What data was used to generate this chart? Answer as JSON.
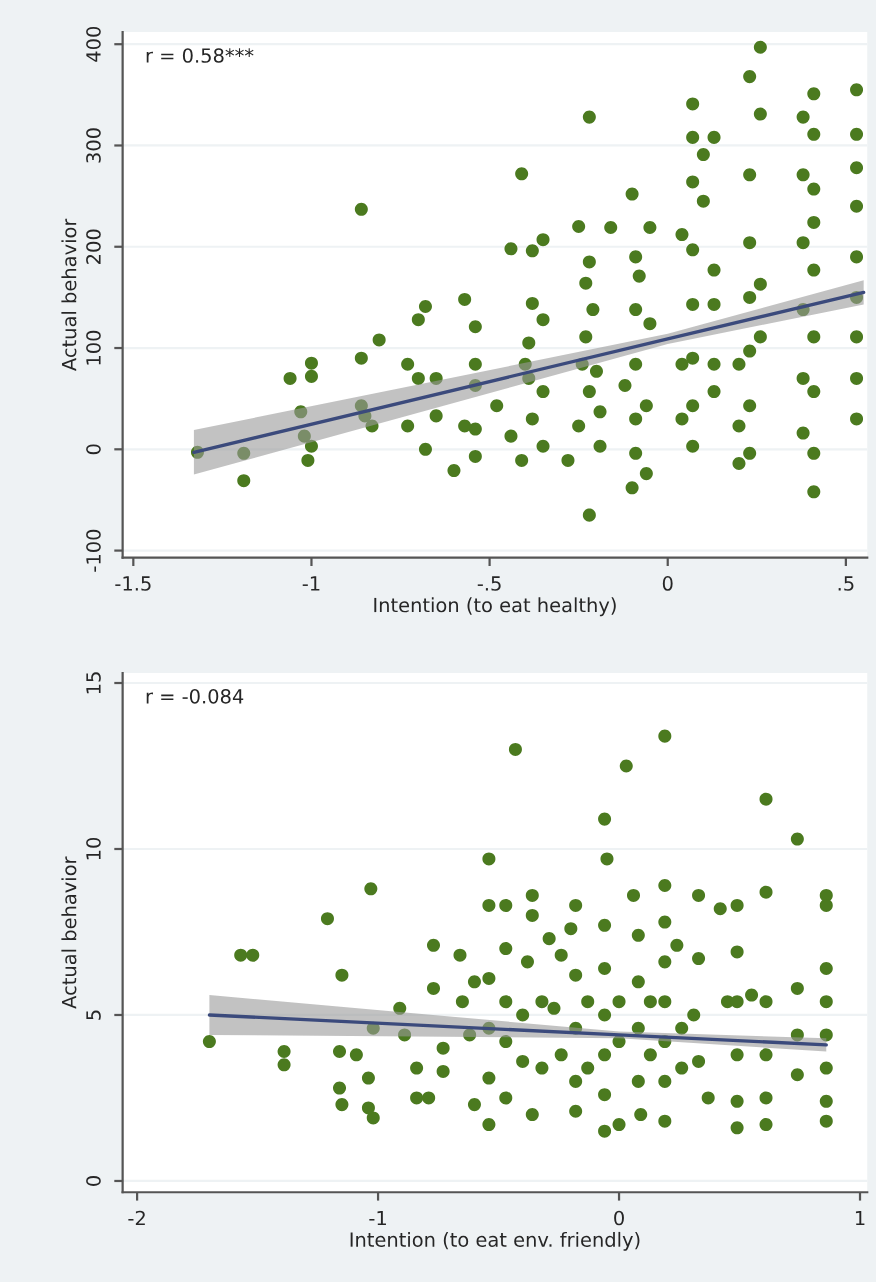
{
  "chart_data": [
    {
      "type": "scatter",
      "xlabel": "Intention (to eat healthy)",
      "ylabel": "Actual behavior",
      "annotations": [
        "r = 0.58***"
      ],
      "xlim": [
        -1.53,
        0.56
      ],
      "ylim": [
        -107,
        412
      ],
      "xticks": [
        {
          "value": -1.5,
          "label": "-1.5"
        },
        {
          "value": -1,
          "label": "-1"
        },
        {
          "value": -0.5,
          "label": "-.5"
        },
        {
          "value": 0,
          "label": "0"
        },
        {
          "value": 0.5,
          "label": ".5"
        }
      ],
      "yticks": [
        -100,
        0,
        100,
        200,
        300,
        400
      ],
      "grid": "y",
      "series": [
        {
          "color": "#4b7a1f",
          "marker": "circle",
          "x": [
            -1.32,
            -1.19,
            -1.19,
            -1.06,
            -1.03,
            -1.0,
            -1.0,
            -1.02,
            -1.01,
            -1.0,
            -0.86,
            -0.86,
            -0.86,
            -0.85,
            -0.83,
            -0.81,
            -0.73,
            -0.7,
            -0.7,
            -0.68,
            -0.73,
            -0.68,
            -0.65,
            -0.65,
            -0.6,
            -0.57,
            -0.54,
            -0.54,
            -0.54,
            -0.54,
            -0.54,
            -0.57,
            -0.48,
            -0.44,
            -0.41,
            -0.41,
            -0.44,
            -0.39,
            -0.38,
            -0.35,
            -0.38,
            -0.35,
            -0.38,
            -0.39,
            -0.35,
            -0.35,
            -0.4,
            -0.28,
            -0.25,
            -0.22,
            -0.22,
            -0.23,
            -0.23,
            -0.22,
            -0.25,
            -0.2,
            -0.19,
            -0.22,
            -0.24,
            -0.21,
            -0.19,
            -0.16,
            -0.1,
            -0.1,
            -0.09,
            -0.09,
            -0.09,
            -0.09,
            -0.09,
            -0.08,
            -0.06,
            -0.05,
            -0.05,
            -0.12,
            -0.06,
            0.04,
            0.07,
            0.07,
            0.07,
            0.07,
            0.07,
            0.07,
            0.07,
            0.07,
            0.1,
            0.13,
            0.1,
            0.13,
            0.13,
            0.13,
            0.13,
            0.04,
            0.04,
            0.2,
            0.23,
            0.23,
            0.23,
            0.23,
            0.23,
            0.23,
            0.23,
            0.26,
            0.26,
            0.26,
            0.26,
            0.2,
            0.2,
            0.38,
            0.41,
            0.38,
            0.41,
            0.38,
            0.41,
            0.38,
            0.41,
            0.38,
            0.41,
            0.38,
            0.41,
            0.41,
            0.41,
            0.41,
            0.53,
            0.53,
            0.53,
            0.53,
            0.53,
            0.53,
            0.53,
            0.53,
            0.53
          ],
          "values": [
            -3,
            -4,
            -31,
            70,
            37,
            85,
            72,
            13,
            -11,
            3,
            237,
            90,
            43,
            33,
            23,
            108,
            84,
            70,
            128,
            141,
            23,
            0,
            70,
            33,
            -21,
            148,
            121,
            84,
            63,
            20,
            -7,
            23,
            43,
            198,
            272,
            -11,
            13,
            105,
            196,
            207,
            144,
            57,
            30,
            70,
            3,
            128,
            84,
            -11,
            220,
            328,
            -65,
            164,
            111,
            57,
            23,
            77,
            3,
            185,
            84,
            138,
            37,
            219,
            252,
            -38,
            190,
            138,
            84,
            30,
            -4,
            171,
            -24,
            219,
            124,
            63,
            43,
            212,
            341,
            308,
            264,
            197,
            143,
            90,
            43,
            3,
            291,
            308,
            245,
            177,
            143,
            84,
            57,
            30,
            84,
            -14,
            368,
            271,
            204,
            150,
            97,
            43,
            -4,
            397,
            331,
            163,
            111,
            84,
            23,
            328,
            311,
            271,
            257,
            204,
            177,
            138,
            111,
            70,
            57,
            16,
            -4,
            -42,
            351,
            224,
            355,
            311,
            278,
            240,
            190,
            150,
            111,
            70,
            30
          ]
        },
        {
          "type": "line",
          "color": "#3b4a7c",
          "x": [
            -1.33,
            0,
            0.55
          ],
          "values": [
            -3,
            109,
            155
          ],
          "lower": [
            -25,
            104,
            143
          ],
          "upper": [
            19,
            114,
            167
          ]
        }
      ]
    },
    {
      "type": "scatter",
      "xlabel": "Intention (to eat env. friendly)",
      "ylabel": "Actual behavior",
      "annotations": [
        "r = -0.084"
      ],
      "xlim": [
        -2.06,
        1.03
      ],
      "ylim": [
        -0.34,
        15.3
      ],
      "xticks": [
        -2,
        -1,
        0,
        1
      ],
      "yticks": [
        0,
        5,
        10,
        15
      ],
      "grid": "y",
      "series": [
        {
          "color": "#4b7a1f",
          "marker": "circle",
          "x": [
            -1.7,
            -1.57,
            -1.52,
            -1.39,
            -1.39,
            -1.21,
            -1.15,
            -1.16,
            -1.16,
            -1.15,
            -1.09,
            -1.03,
            -1.02,
            -1.04,
            -1.04,
            -1.02,
            -0.91,
            -0.89,
            -0.84,
            -0.84,
            -0.79,
            -0.77,
            -0.77,
            -0.73,
            -0.73,
            -0.66,
            -0.65,
            -0.62,
            -0.6,
            -0.6,
            -0.54,
            -0.54,
            -0.54,
            -0.54,
            -0.54,
            -0.54,
            -0.47,
            -0.47,
            -0.47,
            -0.47,
            -0.47,
            -0.43,
            -0.36,
            -0.36,
            -0.38,
            -0.4,
            -0.4,
            -0.36,
            -0.32,
            -0.32,
            -0.29,
            -0.24,
            -0.27,
            -0.24,
            -0.2,
            -0.18,
            -0.18,
            -0.18,
            -0.18,
            -0.18,
            -0.13,
            -0.13,
            -0.06,
            -0.05,
            -0.06,
            -0.06,
            -0.06,
            -0.06,
            -0.06,
            -0.06,
            0.0,
            0.0,
            0.0,
            0.03,
            0.06,
            0.08,
            0.08,
            0.08,
            0.08,
            0.09,
            0.13,
            0.13,
            0.19,
            0.19,
            0.19,
            0.19,
            0.19,
            0.19,
            0.19,
            0.19,
            0.24,
            0.26,
            0.26,
            0.33,
            0.33,
            0.31,
            0.33,
            0.37,
            0.42,
            0.45,
            0.49,
            0.49,
            0.49,
            0.49,
            0.49,
            0.49,
            0.55,
            0.61,
            0.61,
            0.61,
            0.61,
            0.61,
            0.61,
            0.74,
            0.74,
            0.74,
            0.74,
            0.86,
            0.86,
            0.86,
            0.86,
            0.86,
            0.86,
            0.86,
            0.86
          ],
          "values": [
            4.2,
            6.8,
            6.8,
            3.9,
            3.5,
            7.9,
            6.2,
            3.9,
            2.8,
            2.3,
            3.8,
            8.8,
            4.6,
            3.1,
            2.2,
            1.9,
            5.2,
            4.4,
            3.4,
            2.5,
            2.5,
            7.1,
            5.8,
            4.0,
            3.3,
            6.8,
            5.4,
            4.4,
            2.3,
            6.0,
            9.7,
            8.3,
            6.1,
            4.6,
            3.1,
            1.7,
            8.3,
            7.0,
            5.4,
            4.2,
            2.5,
            13.0,
            8.6,
            8.0,
            6.6,
            5.0,
            3.6,
            2.0,
            5.4,
            3.4,
            7.3,
            6.8,
            5.2,
            3.8,
            7.6,
            8.3,
            6.2,
            4.6,
            3.0,
            2.1,
            5.4,
            3.4,
            10.9,
            9.7,
            7.7,
            6.4,
            5.0,
            3.8,
            2.6,
            1.5,
            5.4,
            4.2,
            1.7,
            12.5,
            8.6,
            7.4,
            6.0,
            4.6,
            3.0,
            2.0,
            5.4,
            3.8,
            13.4,
            8.9,
            7.8,
            6.6,
            5.4,
            4.2,
            3.0,
            1.8,
            7.1,
            4.6,
            3.4,
            8.6,
            6.7,
            5.0,
            3.6,
            2.5,
            8.2,
            5.4,
            8.3,
            6.9,
            5.4,
            3.8,
            2.4,
            1.6,
            5.6,
            11.5,
            8.7,
            5.4,
            3.8,
            2.5,
            1.7,
            10.3,
            5.8,
            4.4,
            3.2,
            8.6,
            8.3,
            6.4,
            5.4,
            4.4,
            3.4,
            2.4,
            1.8
          ]
        },
        {
          "type": "line",
          "color": "#3b4a7c",
          "x": [
            -1.7,
            0,
            0.86
          ],
          "values": [
            5.0,
            4.4,
            4.1
          ],
          "lower": [
            4.4,
            4.3,
            3.9
          ],
          "upper": [
            5.6,
            4.5,
            4.3
          ]
        }
      ]
    }
  ]
}
